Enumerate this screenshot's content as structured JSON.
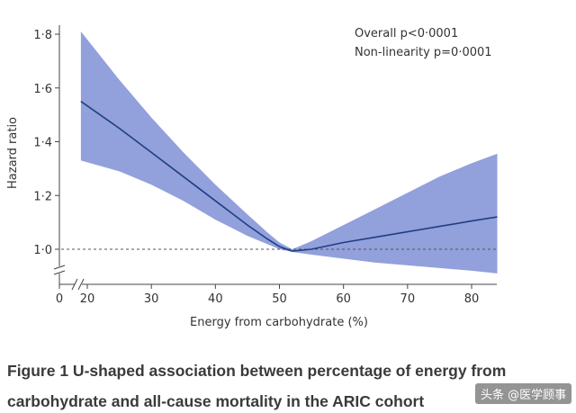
{
  "chart_data": {
    "type": "line",
    "xlabel": "Energy from carbohydrate (%)",
    "ylabel": "Hazard ratio",
    "xlim": [
      15,
      84
    ],
    "ylim": [
      0.9,
      1.85
    ],
    "x_ticks": [
      20,
      30,
      40,
      50,
      60,
      70,
      80
    ],
    "x_origin_label": "0",
    "y_ticks": [
      1.0,
      1.2,
      1.4,
      1.6,
      1.8
    ],
    "y_tick_labels": [
      "1·0",
      "1·2",
      "1·4",
      "1·6",
      "1·8"
    ],
    "reference_line": 1.0,
    "axis_breaks": true,
    "grid": false,
    "annotations": [
      "Overall p<0·0001",
      "Non-linearity p=0·0001"
    ],
    "series": [
      {
        "x": [
          19,
          25,
          30,
          35,
          40,
          45,
          48,
          50,
          52,
          55,
          60,
          65,
          70,
          75,
          80,
          84
        ],
        "y": [
          1.55,
          1.45,
          1.36,
          1.27,
          1.18,
          1.09,
          1.04,
          1.01,
          0.993,
          1.0,
          1.025,
          1.045,
          1.065,
          1.085,
          1.105,
          1.12
        ],
        "lower": [
          1.33,
          1.29,
          1.24,
          1.18,
          1.11,
          1.05,
          1.02,
          1.0,
          0.99,
          0.98,
          0.965,
          0.95,
          0.94,
          0.93,
          0.92,
          0.91
        ],
        "upper": [
          1.81,
          1.63,
          1.49,
          1.36,
          1.24,
          1.13,
          1.065,
          1.025,
          1.0,
          1.03,
          1.09,
          1.15,
          1.21,
          1.27,
          1.32,
          1.355
        ]
      }
    ],
    "colors": {
      "band": "#7f8fd6",
      "line": "#1f3f82",
      "reference": "#555555",
      "axis": "#444444"
    }
  },
  "caption": {
    "line1": "Figure 1 U-shaped association between percentage of energy from",
    "line2": "carbohydrate and all-cause mortality in the ARIC cohort"
  },
  "watermark": "头条 @医学顾事"
}
